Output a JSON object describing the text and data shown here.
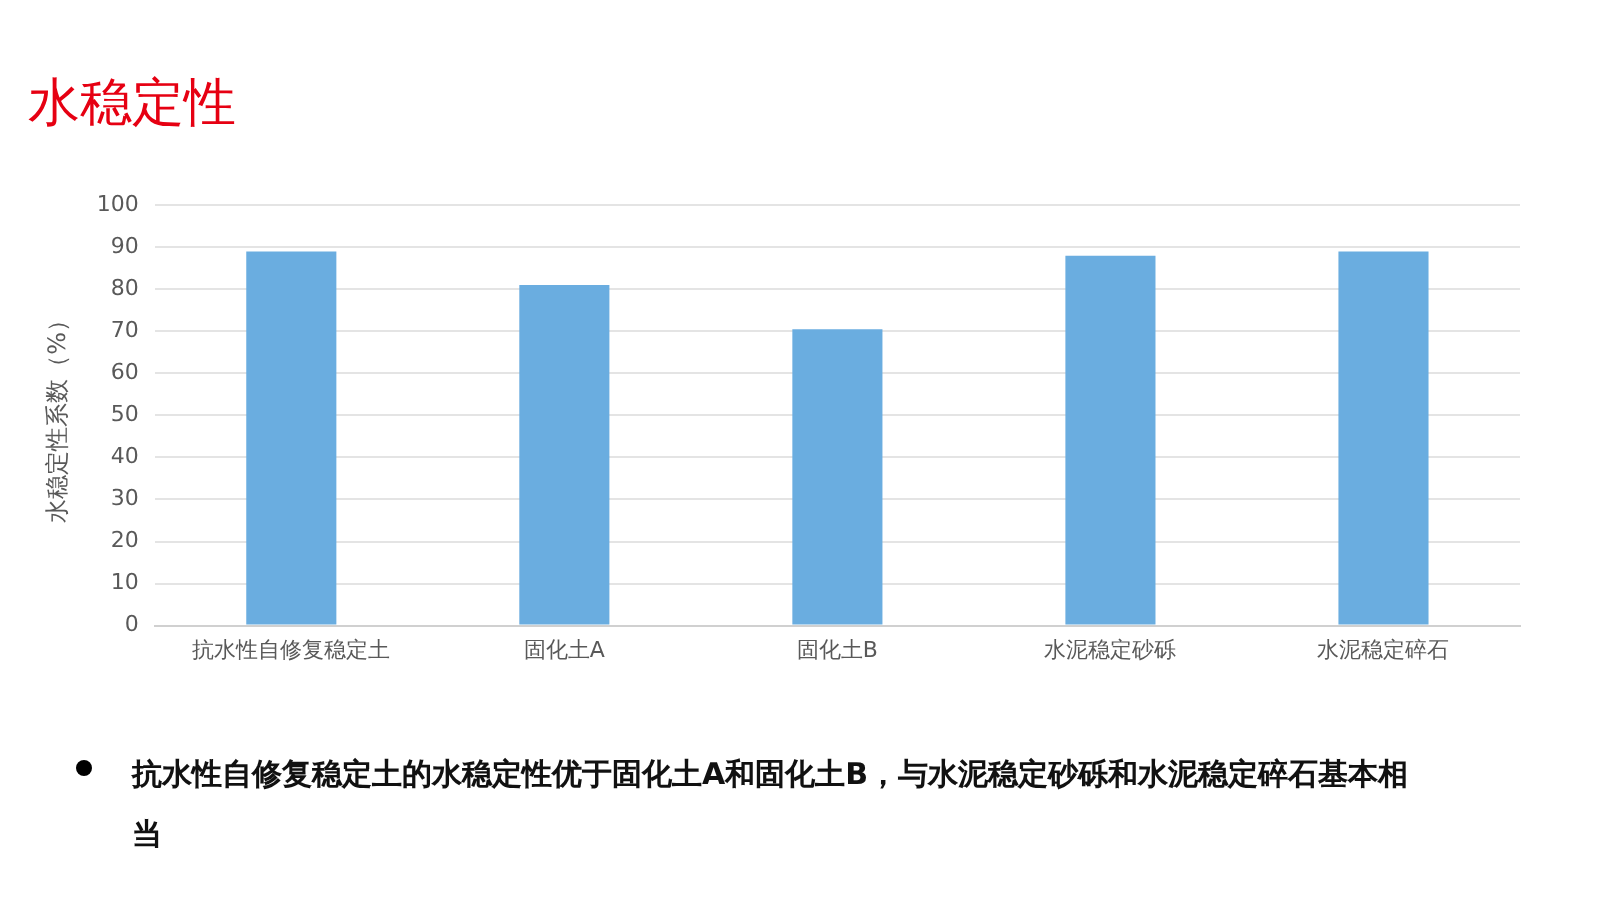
{
  "chart_data": {
    "type": "bar",
    "title": "水稳定性",
    "ylabel": "水稳定性系数（%）",
    "categories": [
      "抗水性自修复稳定土",
      "固化土A",
      "固化土B",
      "水泥稳定砂砾",
      "水泥稳定碎石"
    ],
    "values": [
      89,
      81,
      70.5,
      88,
      89
    ],
    "color": "#6aade0",
    "ylim": [
      0,
      100
    ],
    "yticks": [
      0,
      10,
      20,
      30,
      40,
      50,
      60,
      70,
      80,
      90,
      100
    ],
    "grid": "y",
    "legend": false,
    "annotations": [
      "抗水性自修复稳定土的水稳定性优于固化土A和固化土B，与水泥稳定砂砾和水泥稳定碎石基本相当"
    ]
  }
}
